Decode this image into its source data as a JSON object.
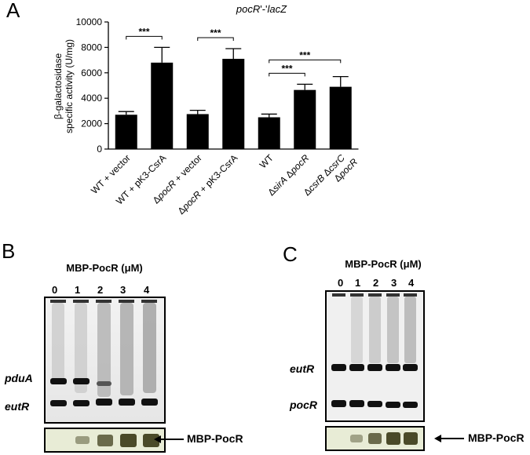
{
  "figure": {
    "panels": {
      "a": {
        "letter": "A"
      },
      "b": {
        "letter": "B",
        "title": "MBP-PocR (μM)",
        "lanes": [
          "0",
          "1",
          "2",
          "3",
          "4"
        ],
        "bands": [
          "pduA",
          "eutR"
        ],
        "arrow_label": "MBP-PocR"
      },
      "c": {
        "letter": "C",
        "title": "MBP-PocR (μM)",
        "lanes": [
          "0",
          "1",
          "2",
          "3",
          "4"
        ],
        "bands": [
          "eutR",
          "pocR"
        ],
        "arrow_label": "MBP-PocR"
      }
    }
  },
  "chart_data": {
    "type": "bar",
    "title_parts": [
      {
        "t": "pocR",
        "italic": true
      },
      {
        "t": "'-'",
        "italic": false
      },
      {
        "t": "lacZ",
        "italic": true
      }
    ],
    "ylabel_lines": [
      "β-galactosidase",
      "specific activity (U/mg)"
    ],
    "ylim": [
      0,
      10000
    ],
    "yticks": [
      0,
      2000,
      4000,
      6000,
      8000,
      10000
    ],
    "ytick_labels": [
      "0",
      "2000",
      "4000",
      "6000",
      "8000",
      "10000"
    ],
    "categories": [
      [
        [
          {
            "t": "WT + vector",
            "i": false
          }
        ]
      ],
      [
        [
          {
            "t": "WT + pK3-CsrA",
            "i": false
          }
        ]
      ],
      [
        [
          {
            "t": "Δ",
            "i": false
          },
          {
            "t": "pocR",
            "i": true
          },
          {
            "t": " + vector",
            "i": false
          }
        ]
      ],
      [
        [
          {
            "t": "Δ",
            "i": false
          },
          {
            "t": "pocR",
            "i": true
          },
          {
            "t": " + pK3-CsrA",
            "i": false
          }
        ]
      ],
      [
        [
          {
            "t": "WT",
            "i": false
          }
        ]
      ],
      [
        [
          {
            "t": "Δ",
            "i": false
          },
          {
            "t": "sirA",
            "i": true
          },
          {
            "t": " Δ",
            "i": false
          },
          {
            "t": "pocR",
            "i": true
          }
        ]
      ],
      [
        [
          {
            "t": "Δ",
            "i": false
          },
          {
            "t": "csrB",
            "i": true
          },
          {
            "t": " Δ",
            "i": false
          },
          {
            "t": "csrC",
            "i": true
          }
        ],
        [
          {
            "t": "Δ",
            "i": false
          },
          {
            "t": "pocR",
            "i": true
          }
        ]
      ]
    ],
    "values": [
      2700,
      6800,
      2750,
      7100,
      2500,
      4650,
      4900
    ],
    "errors": [
      250,
      1200,
      300,
      800,
      250,
      450,
      800
    ],
    "significance": [
      {
        "from": 0,
        "to": 1,
        "label": "***"
      },
      {
        "from": 2,
        "to": 3,
        "label": "***"
      },
      {
        "from": 4,
        "to": 5,
        "label": "***"
      },
      {
        "from": 4,
        "to": 6,
        "label": "***"
      }
    ],
    "colors": {
      "bar": "#000000"
    }
  }
}
